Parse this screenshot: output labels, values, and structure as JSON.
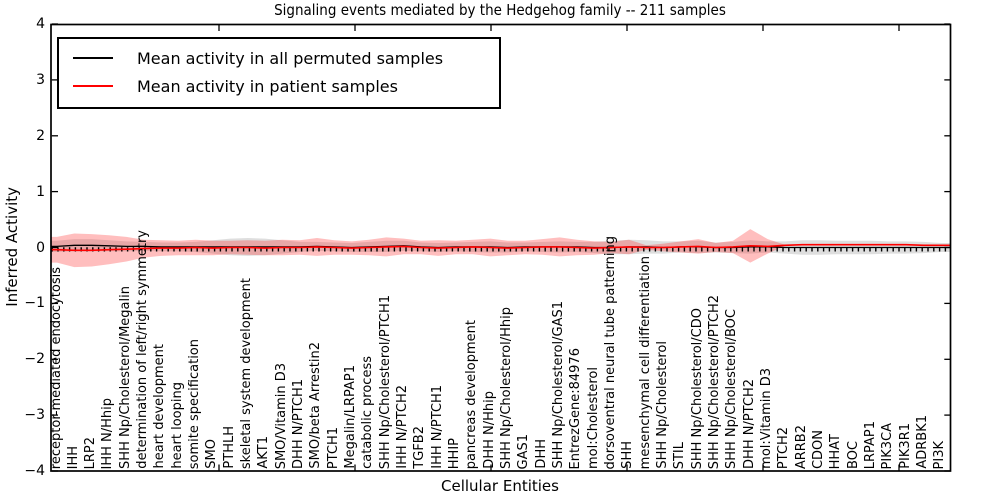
{
  "figure": {
    "title": "Signaling events mediated by the Hedgehog family -- 211 samples",
    "xlabel": "Cellular Entities",
    "ylabel": "Inferred Activity"
  },
  "legend": {
    "entries": [
      {
        "label": "Mean activity in all permuted samples",
        "color": "#000000"
      },
      {
        "label": "Mean activity in patient samples",
        "color": "#ff0000"
      }
    ]
  },
  "chart_data": {
    "type": "line",
    "title": "Signaling events mediated by the Hedgehog family -- 211 samples",
    "xlabel": "Cellular Entities",
    "ylabel": "Inferred Activity",
    "ylim": [
      -4,
      4
    ],
    "ytick_labels": [
      "4",
      "3",
      "2",
      "1",
      "0",
      "−1",
      "−2",
      "−3",
      "−4"
    ],
    "grid": false,
    "legend_position": "upper left",
    "colors": {
      "permuted_line": "#000000",
      "patient_line": "#ff0000",
      "permuted_band": "#00000021",
      "patient_band": "#ff28284d"
    },
    "categories": [
      "receptor-mediated endocytosis",
      "IHH",
      "LRP2",
      "IHH N/Hhip",
      "SHH Np/Cholesterol/Megalin",
      "determination of left/right symmetry",
      "heart development",
      "heart looping",
      "somite specification",
      "SMO",
      "PTHLH",
      "skeletal system development",
      "AKT1",
      "SMO/Vitamin D3",
      "DHH N/PTCH1",
      "SMO/beta Arrestin2",
      "PTCH1",
      "Megalin/LRPAP1",
      "catabolic process",
      "SHH Np/Cholesterol/PTCH1",
      "IHH N/PTCH2",
      "TGFB2",
      "IHH N/PTCH1",
      "HHIP",
      "pancreas development",
      "DHH N/Hhip",
      "SHH Np/Cholesterol/Hhip",
      "GAS1",
      "DHH",
      "SHH Np/Cholesterol/GAS1",
      "EntrezGene:84976",
      "mol:Cholesterol",
      "dorsoventral neural tube patterning",
      "SHH",
      "mesenchymal cell differentiation",
      "SHH Np/Cholesterol",
      "STIL",
      "SHH Np/Cholesterol/CDO",
      "SHH Np/Cholesterol/PTCH2",
      "SHH Np/Cholesterol/BOC",
      "DHH N/PTCH2",
      "mol:Vitamin D3",
      "PTCH2",
      "ARRB2",
      "CDON",
      "HHAT",
      "BOC",
      "LRPAP1",
      "PIK3CA",
      "PIK3R1",
      "ADRBK1",
      "PI3K"
    ],
    "series": [
      {
        "name": "Mean activity in all permuted samples",
        "values": [
          0.02,
          0.04,
          0.04,
          0.03,
          0.02,
          0.02,
          0.01,
          0.01,
          0.01,
          0.01,
          0.01,
          0.01,
          0.01,
          0.01,
          0.01,
          0.02,
          0.01,
          0.0,
          0.01,
          0.02,
          0.03,
          0.01,
          0.0,
          0.01,
          0.01,
          0.01,
          0.0,
          0.01,
          0.01,
          0.01,
          0.01,
          0.0,
          0.0,
          0.01,
          0.01,
          0.0,
          0.01,
          0.01,
          0.0,
          0.0,
          0.01,
          0.01,
          0.0,
          0.0,
          0.0,
          0.0,
          0.0,
          0.0,
          0.0,
          0.0,
          0.0,
          0.0
        ]
      },
      {
        "name": "Mean activity in patient samples",
        "values": [
          -0.04,
          -0.05,
          -0.05,
          -0.04,
          -0.03,
          -0.02,
          -0.01,
          -0.01,
          0.0,
          -0.01,
          0.0,
          0.0,
          -0.01,
          0.0,
          0.0,
          0.01,
          0.0,
          -0.01,
          0.0,
          0.01,
          0.02,
          0.0,
          -0.01,
          0.0,
          0.01,
          0.0,
          -0.01,
          0.0,
          0.01,
          0.01,
          0.0,
          -0.01,
          0.0,
          0.01,
          0.0,
          0.0,
          0.01,
          0.02,
          0.0,
          0.01,
          0.03,
          0.02,
          0.04,
          0.05,
          0.05,
          0.05,
          0.05,
          0.05,
          0.05,
          0.05,
          0.04,
          0.04
        ]
      },
      {
        "name": "Permuted samples std (band half-width)",
        "values": [
          0.1,
          0.11,
          0.11,
          0.1,
          0.09,
          0.08,
          0.08,
          0.08,
          0.09,
          0.12,
          0.15,
          0.16,
          0.15,
          0.12,
          0.09,
          0.08,
          0.08,
          0.08,
          0.09,
          0.1,
          0.09,
          0.08,
          0.08,
          0.08,
          0.09,
          0.1,
          0.09,
          0.08,
          0.09,
          0.1,
          0.09,
          0.1,
          0.12,
          0.13,
          0.12,
          0.11,
          0.1,
          0.11,
          0.09,
          0.1,
          0.12,
          0.1,
          0.11,
          0.13,
          0.13,
          0.12,
          0.12,
          0.12,
          0.11,
          0.11,
          0.1,
          0.08
        ]
      },
      {
        "name": "Patient samples std (band half-width)",
        "values": [
          0.23,
          0.3,
          0.29,
          0.26,
          0.22,
          0.16,
          0.14,
          0.13,
          0.14,
          0.13,
          0.12,
          0.13,
          0.13,
          0.14,
          0.13,
          0.16,
          0.13,
          0.12,
          0.14,
          0.17,
          0.14,
          0.12,
          0.14,
          0.12,
          0.13,
          0.16,
          0.13,
          0.12,
          0.14,
          0.17,
          0.14,
          0.12,
          0.1,
          0.13,
          0.04,
          0.07,
          0.1,
          0.13,
          0.08,
          0.11,
          0.3,
          0.13,
          0.01,
          0.0,
          0.0,
          0.0,
          0.0,
          0.0,
          0.0,
          0.0,
          0.0,
          0.0
        ]
      }
    ]
  }
}
